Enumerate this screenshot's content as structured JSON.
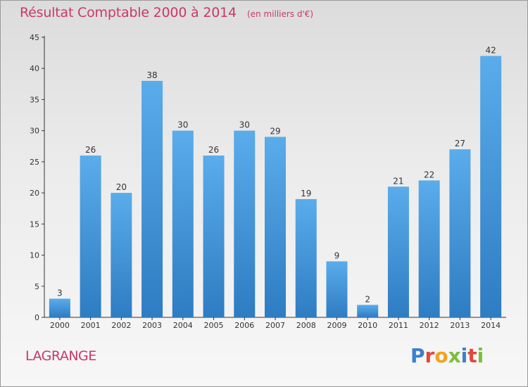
{
  "chart_data": {
    "type": "bar",
    "title": "Résultat Comptable 2000 à 2014",
    "subtitle": "(en milliers d'€)",
    "categories": [
      "2000",
      "2001",
      "2002",
      "2003",
      "2004",
      "2005",
      "2006",
      "2007",
      "2008",
      "2009",
      "2010",
      "2011",
      "2012",
      "2013",
      "2014"
    ],
    "values": [
      3,
      26,
      20,
      38,
      30,
      26,
      30,
      29,
      19,
      9,
      2,
      21,
      22,
      27,
      42
    ],
    "ylim": [
      0,
      45
    ],
    "yticks": [
      0,
      5,
      10,
      15,
      20,
      25,
      30,
      35,
      40,
      45
    ],
    "xlabel": "",
    "ylabel": "",
    "grid": false,
    "bar_color": "#4a9ee0",
    "bar_color_dark": "#2f7fc4"
  },
  "footer": {
    "commune": "LAGRANGE",
    "logo_text": "Proxiti",
    "logo_colors": [
      "#3b7fd1",
      "#e2483b",
      "#f2a21f",
      "#7bbf3a",
      "#3b7fd1",
      "#e2483b",
      "#7bbf3a"
    ]
  },
  "colors": {
    "accent": "#c8396a",
    "axis": "#333333"
  }
}
